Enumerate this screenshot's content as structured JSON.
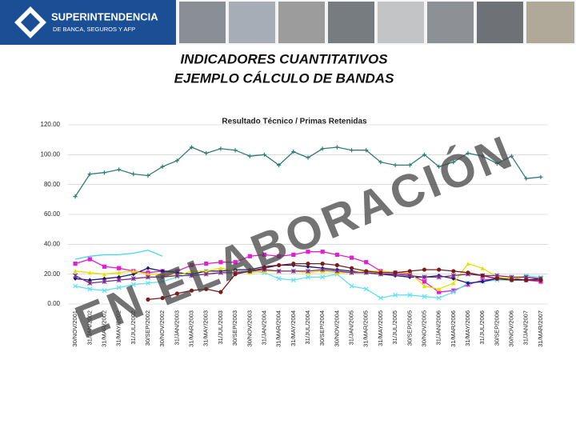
{
  "header": {
    "brand": "SUPERINTENDENCIA",
    "brand_sub": "DE BANCA, SEGUROS Y AFP"
  },
  "slide_title": [
    "INDICADORES CUANTITATIVOS",
    "EJEMPLO CÁLCULO DE BANDAS"
  ],
  "chart_data": {
    "type": "line",
    "title": "Resultado Técnico / Primas Retenidas",
    "annotation": "EN ELABORACIÓN",
    "categories": [
      "30/NOV/2001",
      "31/JAN/2002",
      "31/MAR/2002",
      "31/MAY/2002",
      "31/JUL/2002",
      "30/SEP/2002",
      "30/NOV/2002",
      "31/JAN/2003",
      "31/MAR/2003",
      "31/MAY/2003",
      "31/JUL/2003",
      "30/SEP/2003",
      "30/NOV/2003",
      "31/JAN/2004",
      "31/MAR/2004",
      "31/MAY/2004",
      "31/JUL/2004",
      "30/SEP/2004",
      "30/NOV/2004",
      "31/JAN/2005",
      "31/MAR/2005",
      "31/MAY/2005",
      "31/JUL/2005",
      "30/SEP/2005",
      "30/NOV/2005",
      "31/JAN/2006",
      "31/MAR/2006",
      "31/MAY/2006",
      "31/JUL/2006",
      "30/SEP/2006",
      "30/NOV/2006",
      "31/JAN/2007",
      "31/MAR/2007"
    ],
    "ylim": [
      0,
      120
    ],
    "yticks": [
      {
        "value": 0,
        "label": "0.00"
      },
      {
        "value": 20,
        "label": "20.00"
      },
      {
        "value": 40,
        "label": "40.00"
      },
      {
        "value": 60,
        "label": "60.00"
      },
      {
        "value": 80,
        "label": "80.00"
      },
      {
        "value": 100,
        "label": "100.00"
      },
      {
        "value": 120,
        "label": "120.00"
      }
    ],
    "series": [
      {
        "color": "#2e7d73",
        "marker": "plus",
        "values": [
          72,
          87,
          88,
          90,
          87,
          86,
          92,
          96,
          105,
          101,
          104,
          103,
          99,
          100,
          93,
          102,
          98,
          104,
          105,
          103,
          103,
          95,
          93,
          93,
          100,
          92,
          95,
          101,
          99,
          94,
          99,
          84,
          85
        ]
      },
      {
        "color": "#e020d0",
        "marker": "square",
        "values": [
          27,
          30,
          25,
          24,
          22,
          21,
          22,
          22,
          26,
          27,
          28,
          28,
          32,
          33,
          32,
          33,
          35,
          35,
          33,
          31,
          28,
          22,
          21,
          20,
          15,
          8,
          9,
          13,
          16,
          17,
          17,
          16,
          15
        ]
      },
      {
        "color": "#40d8e8",
        "marker": "none",
        "values": [
          30,
          32,
          33,
          33,
          34,
          36,
          32,
          null,
          null,
          null,
          null,
          null,
          null,
          null,
          null,
          null,
          null,
          null,
          null,
          null,
          null,
          null,
          null,
          null,
          null,
          null,
          null,
          null,
          null,
          null,
          null,
          null,
          null
        ]
      },
      {
        "color": "#60e0f0",
        "marker": "cross",
        "values": [
          12,
          10,
          9,
          11,
          13,
          14,
          15,
          18,
          20,
          22,
          22,
          22,
          22,
          21,
          17,
          16,
          18,
          18,
          20,
          12,
          10,
          4,
          6,
          6,
          5,
          4,
          8,
          14,
          15,
          16,
          16,
          19,
          18
        ]
      },
      {
        "color": "#1a1a6e",
        "marker": "diamond",
        "values": [
          17,
          16,
          17,
          18,
          20,
          24,
          22,
          21,
          20,
          22,
          22,
          23,
          23,
          25,
          26,
          26,
          25,
          24,
          23,
          22,
          21,
          20,
          19,
          18,
          18,
          19,
          17,
          14,
          15,
          17,
          17,
          16,
          17
        ]
      },
      {
        "color": "#e8e000",
        "marker": "triangle",
        "values": [
          22,
          21,
          20,
          21,
          22,
          20,
          20,
          19,
          22,
          22,
          24,
          22,
          21,
          22,
          22,
          22,
          21,
          22,
          21,
          21,
          22,
          22,
          21,
          21,
          12,
          10,
          14,
          27,
          24,
          18,
          17,
          18,
          17
        ]
      },
      {
        "color": "#7a2a8a",
        "marker": "star",
        "values": [
          19,
          14,
          15,
          16,
          17,
          18,
          18,
          19,
          19,
          20,
          21,
          21,
          22,
          23,
          22,
          22,
          22,
          23,
          22,
          21,
          21,
          20,
          20,
          19,
          18,
          18,
          19,
          20,
          19,
          19,
          18,
          18,
          17
        ]
      },
      {
        "color": "#7a1a1a",
        "marker": "circle",
        "values": [
          null,
          null,
          null,
          null,
          null,
          3,
          4,
          7,
          9,
          10,
          8,
          20,
          22,
          24,
          26,
          27,
          27,
          27,
          26,
          24,
          22,
          21,
          21,
          22,
          23,
          23,
          22,
          21,
          19,
          17,
          16,
          16,
          16
        ]
      }
    ]
  }
}
